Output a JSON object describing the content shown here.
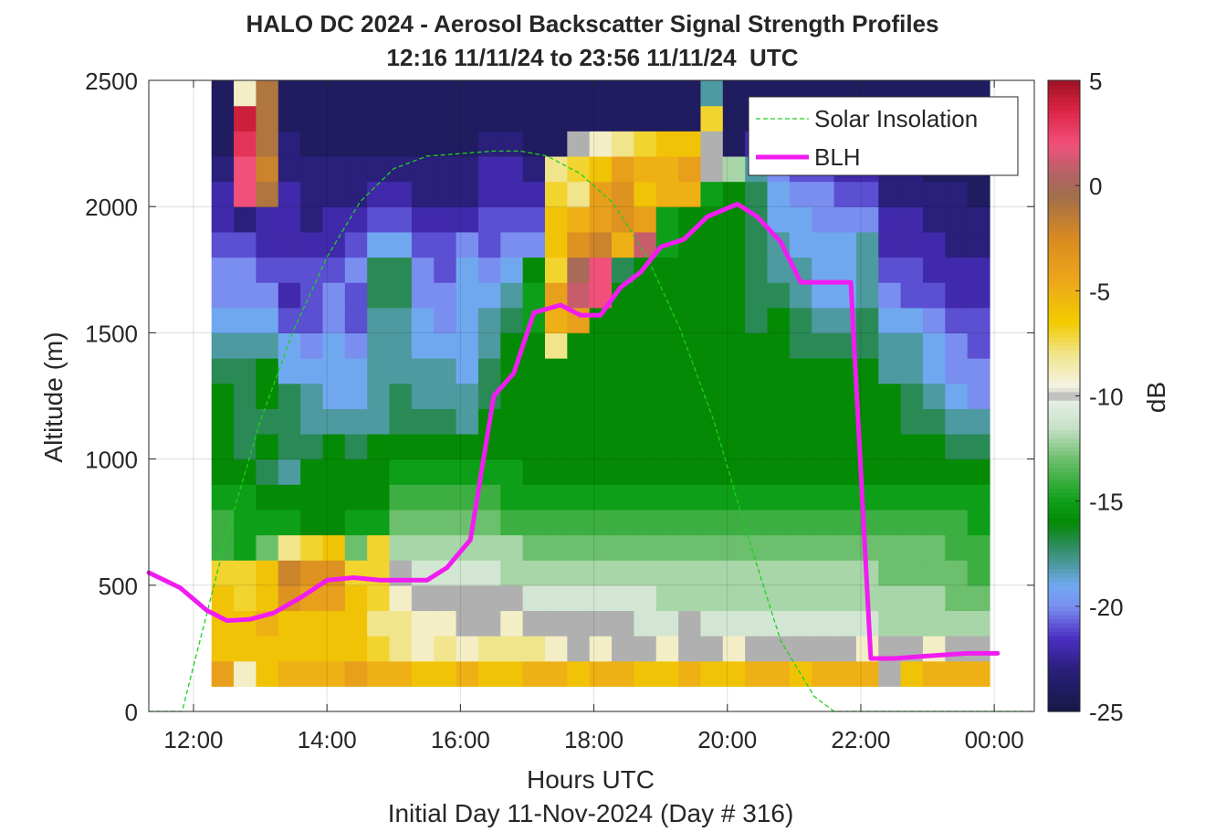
{
  "chart_data": {
    "type": "heatmap",
    "title": "HALO DC 2024 - Aerosol Backscatter Signal Strength Profiles",
    "subtitle": "12:16 11/11/24 to 23:56 11/11/24  UTC",
    "xlabel": "Hours UTC",
    "ylabel": "Altitude (m)",
    "footer": "Initial Day 11-Nov-2024 (Day # 316)",
    "colorbar_label": "dB",
    "x_range_hours": [
      11.33,
      24.6
    ],
    "y_range_m": [
      0,
      2500
    ],
    "c_range_db": [
      -25,
      5
    ],
    "x_ticks": [
      {
        "value": 12,
        "label": "12:00"
      },
      {
        "value": 14,
        "label": "14:00"
      },
      {
        "value": 16,
        "label": "16:00"
      },
      {
        "value": 18,
        "label": "18:00"
      },
      {
        "value": 20,
        "label": "20:00"
      },
      {
        "value": 22,
        "label": "22:00"
      },
      {
        "value": 24,
        "label": "00:00"
      }
    ],
    "y_ticks": [
      {
        "value": 0,
        "label": "0"
      },
      {
        "value": 500,
        "label": "500"
      },
      {
        "value": 1000,
        "label": "1000"
      },
      {
        "value": 1500,
        "label": "1500"
      },
      {
        "value": 2000,
        "label": "2000"
      },
      {
        "value": 2500,
        "label": "2500"
      }
    ],
    "c_ticks": [
      {
        "value": 5,
        "label": "5"
      },
      {
        "value": 0,
        "label": "0"
      },
      {
        "value": -5,
        "label": "-5"
      },
      {
        "value": -10,
        "label": "-10"
      },
      {
        "value": -15,
        "label": "-15"
      },
      {
        "value": -20,
        "label": "-20"
      },
      {
        "value": -25,
        "label": "-25"
      }
    ],
    "grid": true,
    "legend_position": "top-right",
    "heatmap": {
      "x_start_hours": 12.27,
      "x_end_hours": 23.93,
      "y_bottom_m": 100,
      "y_top_m": 2500,
      "columns": 35,
      "rows": 24,
      "row_edges_m": [
        100,
        2500
      ],
      "column_edges_hours": [
        12.27,
        23.93
      ],
      "db_values_approx": [
        [
          -4,
          -9,
          -6,
          -5,
          -5,
          -5,
          -4,
          -5,
          -5,
          -6,
          -6,
          -5,
          -6,
          -6,
          -5,
          -5,
          -6,
          -5,
          -5,
          -6,
          -6,
          -5,
          -6,
          -6,
          -5,
          -5,
          -6,
          -5,
          -5,
          -5,
          -10,
          -6,
          -5,
          -5,
          -5
        ],
        [
          -6,
          -6,
          -6,
          -6,
          -6,
          -6,
          -6,
          -7,
          -8,
          -9,
          -8,
          -9,
          -8,
          -8,
          -8,
          -9,
          -10,
          -9,
          -10,
          -10,
          -9,
          -10,
          -10,
          -9,
          -10,
          -10,
          -10,
          -10,
          -10,
          -9,
          -10,
          -10,
          -9,
          -10,
          -10
        ],
        [
          -6,
          -6,
          -5,
          -6,
          -6,
          -6,
          -6,
          -8,
          -8,
          -9,
          -9,
          -10,
          -10,
          -9,
          -10,
          -10,
          -10,
          -10,
          -10,
          -11,
          -11,
          -10,
          -11,
          -11,
          -11,
          -11,
          -11,
          -11,
          -11,
          -11,
          -12,
          -12,
          -12,
          -12,
          -12
        ],
        [
          -6,
          -7,
          -6,
          -3,
          -4,
          -4,
          -6,
          -7,
          -9,
          -10,
          -10,
          -10,
          -10,
          -10,
          -11,
          -11,
          -11,
          -11,
          -11,
          -11,
          -12,
          -12,
          -12,
          -12,
          -12,
          -12,
          -12,
          -12,
          -12,
          -12,
          -12,
          -12,
          -12,
          -13,
          -13
        ],
        [
          -7,
          -7,
          -6,
          -2,
          -3,
          -3,
          -7,
          -7,
          -10,
          -11,
          -11,
          -11,
          -11,
          -12,
          -12,
          -12,
          -12,
          -12,
          -12,
          -12,
          -12,
          -12,
          -12,
          -12,
          -12,
          -12,
          -12,
          -12,
          -12,
          -12,
          -13,
          -13,
          -13,
          -13,
          -14
        ],
        [
          -14,
          -15,
          -13,
          -8,
          -7,
          -6,
          -13,
          -7,
          -12,
          -12,
          -12,
          -12,
          -12,
          -12,
          -13,
          -13,
          -13,
          -13,
          -13,
          -13,
          -13,
          -13,
          -13,
          -13,
          -13,
          -13,
          -13,
          -13,
          -13,
          -13,
          -13,
          -13,
          -13,
          -14,
          -14
        ],
        [
          -14,
          -15,
          -15,
          -15,
          -16,
          -16,
          -15,
          -15,
          -13,
          -13,
          -13,
          -13,
          -13,
          -14,
          -14,
          -14,
          -14,
          -14,
          -14,
          -14,
          -14,
          -14,
          -14,
          -14,
          -14,
          -14,
          -14,
          -14,
          -14,
          -14,
          -14,
          -14,
          -14,
          -14,
          -15
        ],
        [
          -15,
          -15,
          -16,
          -16,
          -16,
          -16,
          -16,
          -16,
          -14,
          -14,
          -14,
          -14,
          -14,
          -15,
          -15,
          -15,
          -15,
          -15,
          -15,
          -15,
          -15,
          -15,
          -15,
          -15,
          -15,
          -15,
          -15,
          -15,
          -15,
          -15,
          -15,
          -15,
          -15,
          -15,
          -15
        ],
        [
          -16,
          -16,
          -17,
          -18,
          -16,
          -16,
          -16,
          -16,
          -15,
          -15,
          -15,
          -15,
          -15,
          -15,
          -16,
          -16,
          -16,
          -16,
          -16,
          -16,
          -16,
          -16,
          -16,
          -16,
          -16,
          -16,
          -16,
          -16,
          -16,
          -16,
          -16,
          -16,
          -16,
          -16,
          -16
        ],
        [
          -16,
          -17,
          -16,
          -17,
          -17,
          -16,
          -17,
          -16,
          -16,
          -16,
          -16,
          -16,
          -16,
          -16,
          -16,
          -16,
          -16,
          -16,
          -16,
          -16,
          -16,
          -16,
          -16,
          -16,
          -16,
          -16,
          -16,
          -16,
          -16,
          -16,
          -16,
          -16,
          -16,
          -17,
          -17
        ],
        [
          -16,
          -17,
          -17,
          -17,
          -18,
          -18,
          -18,
          -18,
          -17,
          -17,
          -17,
          -18,
          -16,
          -16,
          -16,
          -16,
          -16,
          -16,
          -16,
          -16,
          -16,
          -16,
          -16,
          -16,
          -16,
          -16,
          -16,
          -16,
          -16,
          -16,
          -16,
          -17,
          -17,
          -18,
          -18
        ],
        [
          -16,
          -17,
          -16,
          -17,
          -18,
          -19,
          -19,
          -18,
          -17,
          -18,
          -18,
          -18,
          -17,
          -16,
          -16,
          -16,
          -16,
          -16,
          -16,
          -16,
          -16,
          -16,
          -16,
          -16,
          -16,
          -16,
          -16,
          -16,
          -16,
          -16,
          -16,
          -17,
          -18,
          -19,
          -20
        ],
        [
          -17,
          -17,
          -16,
          -19,
          -19,
          -19,
          -19,
          -18,
          -18,
          -18,
          -18,
          -19,
          -17,
          -16,
          -16,
          -16,
          -16,
          -16,
          -16,
          -16,
          -16,
          -16,
          -16,
          -16,
          -16,
          -16,
          -16,
          -16,
          -16,
          -16,
          -18,
          -18,
          -19,
          -20,
          -20
        ],
        [
          -18,
          -18,
          -18,
          -19,
          -20,
          -19,
          -20,
          -18,
          -18,
          -19,
          -19,
          -19,
          -18,
          -16,
          -16,
          -8,
          -16,
          -16,
          -16,
          -16,
          -16,
          -16,
          -16,
          -16,
          -16,
          -16,
          -17,
          -17,
          -17,
          -17,
          -18,
          -18,
          -19,
          -20,
          -21
        ],
        [
          -19,
          -19,
          -19,
          -21,
          -21,
          -20,
          -21,
          -18,
          -18,
          -19,
          -20,
          -19,
          -18,
          -17,
          -15,
          -5,
          -4,
          -16,
          -16,
          -16,
          -16,
          -16,
          -16,
          -16,
          -17,
          -16,
          -17,
          -18,
          -18,
          -17,
          -19,
          -19,
          -20,
          -21,
          -21
        ],
        [
          -20,
          -20,
          -20,
          -22,
          -21,
          -20,
          -21,
          -17,
          -17,
          -20,
          -20,
          -19,
          -19,
          -18,
          -15,
          -4,
          1,
          2,
          -16,
          -16,
          -16,
          -16,
          -16,
          -16,
          -17,
          -17,
          -18,
          -19,
          -19,
          -18,
          -20,
          -21,
          -21,
          -22,
          -22
        ],
        [
          -20,
          -20,
          -21,
          -21,
          -21,
          -21,
          -20,
          -17,
          -17,
          -20,
          -21,
          -19,
          -20,
          -19,
          -16,
          -7,
          0,
          2,
          -17,
          -16,
          -16,
          -16,
          -16,
          -16,
          -17,
          -18,
          -18,
          -19,
          -19,
          -18,
          -21,
          -21,
          -22,
          -22,
          -22
        ],
        [
          -21,
          -21,
          -22,
          -22,
          -22,
          -22,
          -21,
          -19,
          -19,
          -21,
          -21,
          -20,
          -21,
          -20,
          -20,
          -6,
          -3,
          -2,
          -5,
          1,
          -15,
          -16,
          -16,
          -16,
          -17,
          -18,
          -19,
          -19,
          -19,
          -18,
          -22,
          -22,
          -22,
          -23,
          -23
        ],
        [
          -22,
          -23,
          -22,
          -22,
          -23,
          -22,
          -22,
          -21,
          -21,
          -22,
          -22,
          -22,
          -21,
          -21,
          -21,
          -6,
          -5,
          -4,
          -3,
          -4,
          -15,
          -16,
          -16,
          -16,
          -17,
          -19,
          -19,
          -20,
          -20,
          -20,
          -22,
          -22,
          -23,
          -23,
          -23
        ],
        [
          -22,
          2,
          -1,
          -22,
          -23,
          -23,
          -23,
          -22,
          -22,
          -23,
          -23,
          -23,
          -22,
          -22,
          -22,
          -7,
          -8,
          -4,
          -3,
          -6,
          -5,
          -5,
          -15,
          -16,
          -17,
          -19,
          -20,
          -20,
          -21,
          -21,
          -23,
          -23,
          -23,
          -23,
          -24
        ],
        [
          -23,
          2,
          -2,
          -23,
          -23,
          -23,
          -23,
          -23,
          -23,
          -23,
          -23,
          -23,
          -22,
          -22,
          -23,
          -8,
          -7,
          -6,
          -4,
          -5,
          -5,
          -4,
          -10,
          -12,
          -18,
          -20,
          -21,
          -21,
          -22,
          -22,
          -23,
          -23,
          -24,
          -24,
          -24
        ],
        [
          -24,
          3,
          -1,
          -23,
          -24,
          -24,
          -24,
          -24,
          -24,
          -24,
          -24,
          -24,
          -23,
          -23,
          -24,
          -24,
          -10,
          -9,
          -8,
          -7,
          -6,
          -6,
          -10,
          -24,
          -22,
          -22,
          -22,
          -22,
          -23,
          -23,
          -24,
          -24,
          -24,
          -24,
          -24
        ],
        [
          -24,
          4,
          -1,
          -24,
          -24,
          -24,
          -24,
          -24,
          -24,
          -24,
          -24,
          -24,
          -24,
          -24,
          -24,
          -24,
          -24,
          -24,
          -24,
          -24,
          -24,
          -24,
          -7,
          -24,
          -24,
          -24,
          -24,
          -24,
          -24,
          -24,
          -24,
          -24,
          -24,
          -24,
          -24
        ],
        [
          -24,
          -9,
          -1,
          -24,
          -24,
          -24,
          -24,
          -24,
          -24,
          -24,
          -24,
          -24,
          -24,
          -24,
          -24,
          -24,
          -24,
          -24,
          -24,
          -24,
          -24,
          -24,
          -18,
          -24,
          -24,
          -24,
          -24,
          -24,
          -24,
          -24,
          -24,
          -24,
          -24,
          -24,
          -24
        ]
      ]
    },
    "series": [
      {
        "name": "Solar Insolation",
        "style": "dashed",
        "color": "#1ed11e",
        "x": [
          11.33,
          11.83,
          12.0,
          12.5,
          13.0,
          13.5,
          14.0,
          14.5,
          15.0,
          15.5,
          16.0,
          16.5,
          16.9,
          17.3,
          17.8,
          18.3,
          18.8,
          19.3,
          19.8,
          20.3,
          20.8,
          21.3,
          21.6,
          21.85,
          22.0,
          24.6
        ],
        "y": [
          0,
          0,
          180,
          700,
          1150,
          1510,
          1800,
          2020,
          2150,
          2200,
          2210,
          2220,
          2220,
          2200,
          2130,
          2010,
          1800,
          1510,
          1150,
          700,
          280,
          60,
          0,
          0,
          0,
          0
        ]
      },
      {
        "name": "BLH",
        "style": "solid",
        "color": "#f11cf1",
        "x": [
          11.33,
          11.8,
          12.2,
          12.5,
          12.85,
          13.2,
          13.6,
          14.0,
          14.4,
          14.8,
          15.5,
          15.8,
          16.15,
          16.5,
          16.8,
          17.1,
          17.5,
          17.8,
          18.1,
          18.4,
          18.7,
          19.0,
          19.35,
          19.7,
          20.15,
          20.45,
          20.8,
          21.1,
          21.5,
          21.85,
          22.15,
          22.5,
          23.0,
          23.6,
          24.05
        ],
        "y": [
          550,
          490,
          400,
          360,
          365,
          390,
          450,
          520,
          530,
          520,
          520,
          570,
          680,
          1250,
          1340,
          1580,
          1610,
          1570,
          1570,
          1680,
          1740,
          1840,
          1870,
          1960,
          2010,
          1960,
          1860,
          1700,
          1700,
          1700,
          210,
          210,
          220,
          230,
          230
        ]
      }
    ],
    "colormap_stops": [
      {
        "value": -25,
        "color": "#161846"
      },
      {
        "value": -23,
        "color": "#2a1f7a"
      },
      {
        "value": -21.5,
        "color": "#4b2fc3"
      },
      {
        "value": -20,
        "color": "#7a8ef0"
      },
      {
        "value": -19,
        "color": "#70a8f0"
      },
      {
        "value": -18,
        "color": "#4d9aa0"
      },
      {
        "value": -17,
        "color": "#2a8a55"
      },
      {
        "value": -16,
        "color": "#058a05"
      },
      {
        "value": -15,
        "color": "#0d9f18"
      },
      {
        "value": -13,
        "color": "#6cbf6c"
      },
      {
        "value": -11.5,
        "color": "#c6e1c6"
      },
      {
        "value": -10.3,
        "color": "#e4eee4"
      },
      {
        "value": -10,
        "color": "#b0b0b0"
      },
      {
        "value": -9.6,
        "color": "#f4f4e8"
      },
      {
        "value": -8,
        "color": "#f1e58c"
      },
      {
        "value": -6.5,
        "color": "#f2cc00"
      },
      {
        "value": -4.5,
        "color": "#eda71a"
      },
      {
        "value": -2.5,
        "color": "#d98b20"
      },
      {
        "value": -0.5,
        "color": "#a26f4b"
      },
      {
        "value": 0.5,
        "color": "#b26464"
      },
      {
        "value": 2,
        "color": "#f0507a"
      },
      {
        "value": 3.5,
        "color": "#e02648"
      },
      {
        "value": 5,
        "color": "#a01222"
      }
    ]
  }
}
